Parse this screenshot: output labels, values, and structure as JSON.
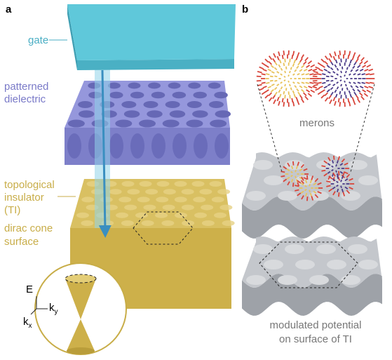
{
  "panel_a": {
    "label": "a",
    "gate": "gate",
    "dielectric": [
      "patterned",
      "dielectric"
    ],
    "ti": [
      "topological",
      "insulator",
      "(TI)"
    ],
    "surface": [
      "dirac cone",
      "surface"
    ],
    "inset": {
      "energy": "E",
      "ky": {
        "base": "k",
        "sub": "y"
      },
      "kx": {
        "base": "k",
        "sub": "x"
      }
    }
  },
  "panel_b": {
    "label": "b",
    "merons": "merons",
    "potential": [
      "modulated potential",
      "on surface of TI"
    ]
  }
}
